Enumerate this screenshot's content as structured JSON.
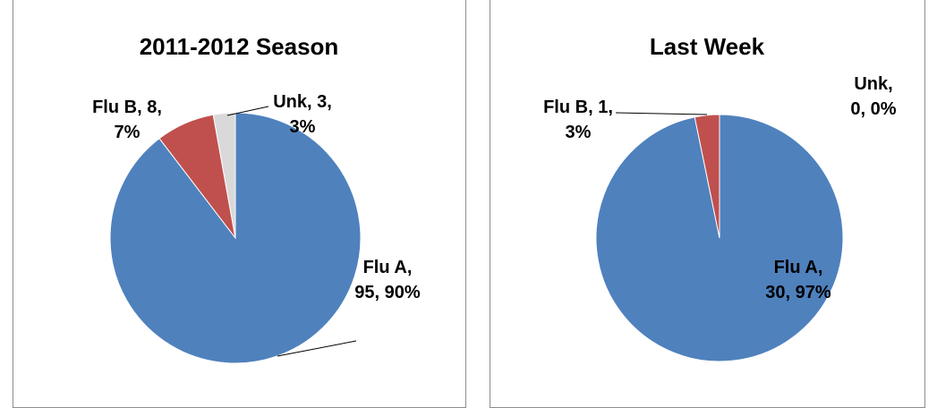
{
  "chart_data": [
    {
      "type": "pie",
      "title": "2011-2012 Season",
      "categories": [
        "Flu A",
        "Flu B",
        "Unk"
      ],
      "values": [
        95,
        8,
        3
      ],
      "value_labels": [
        "Flu A, 95, 90%",
        "Flu B, 8, 7%",
        "Unk, 3, 3%"
      ],
      "colors": [
        "#4f81bd",
        "#c0504d",
        "#d9d9d9"
      ]
    },
    {
      "type": "pie",
      "title": "Last Week",
      "categories": [
        "Flu A",
        "Flu B",
        "Unk"
      ],
      "values": [
        30,
        1,
        0
      ],
      "value_labels": [
        "Flu A, 30, 97%",
        "Flu B, 1, 3%",
        "Unk, 0, 0%"
      ],
      "colors": [
        "#4f81bd",
        "#c0504d",
        "#d9d9d9"
      ]
    }
  ]
}
